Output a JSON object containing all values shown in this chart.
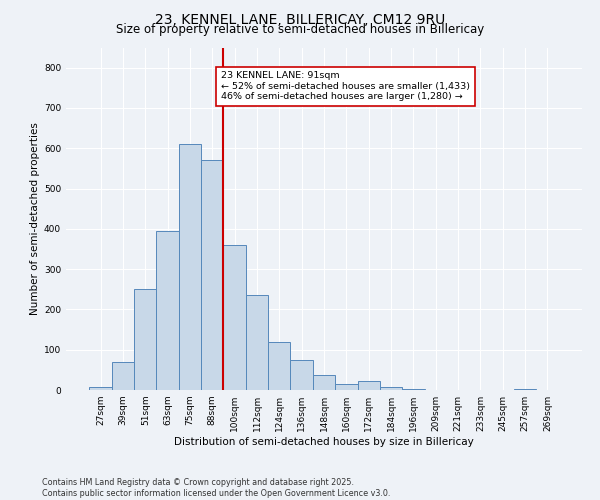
{
  "title": "23, KENNEL LANE, BILLERICAY, CM12 9RU",
  "subtitle": "Size of property relative to semi-detached houses in Billericay",
  "xlabel": "Distribution of semi-detached houses by size in Billericay",
  "ylabel": "Number of semi-detached properties",
  "bin_labels": [
    "27sqm",
    "39sqm",
    "51sqm",
    "63sqm",
    "75sqm",
    "88sqm",
    "100sqm",
    "112sqm",
    "124sqm",
    "136sqm",
    "148sqm",
    "160sqm",
    "172sqm",
    "184sqm",
    "196sqm",
    "209sqm",
    "221sqm",
    "233sqm",
    "245sqm",
    "257sqm",
    "269sqm"
  ],
  "bar_heights": [
    7,
    70,
    250,
    395,
    610,
    570,
    360,
    237,
    120,
    75,
    37,
    15,
    22,
    7,
    2,
    0,
    0,
    0,
    0,
    2,
    0
  ],
  "bar_color": "#c8d8e8",
  "bar_edge_color": "#5588bb",
  "vline_x_index": 5.5,
  "vline_color": "#cc0000",
  "annotation_text": "23 KENNEL LANE: 91sqm\n← 52% of semi-detached houses are smaller (1,433)\n46% of semi-detached houses are larger (1,280) →",
  "annotation_box_color": "#ffffff",
  "annotation_box_edge": "#cc0000",
  "ylim": [
    0,
    850
  ],
  "yticks": [
    0,
    100,
    200,
    300,
    400,
    500,
    600,
    700,
    800
  ],
  "background_color": "#eef2f7",
  "footer_text": "Contains HM Land Registry data © Crown copyright and database right 2025.\nContains public sector information licensed under the Open Government Licence v3.0.",
  "title_fontsize": 10,
  "subtitle_fontsize": 8.5,
  "axis_label_fontsize": 7.5,
  "tick_fontsize": 6.5,
  "annotation_fontsize": 6.8,
  "footer_fontsize": 5.8
}
